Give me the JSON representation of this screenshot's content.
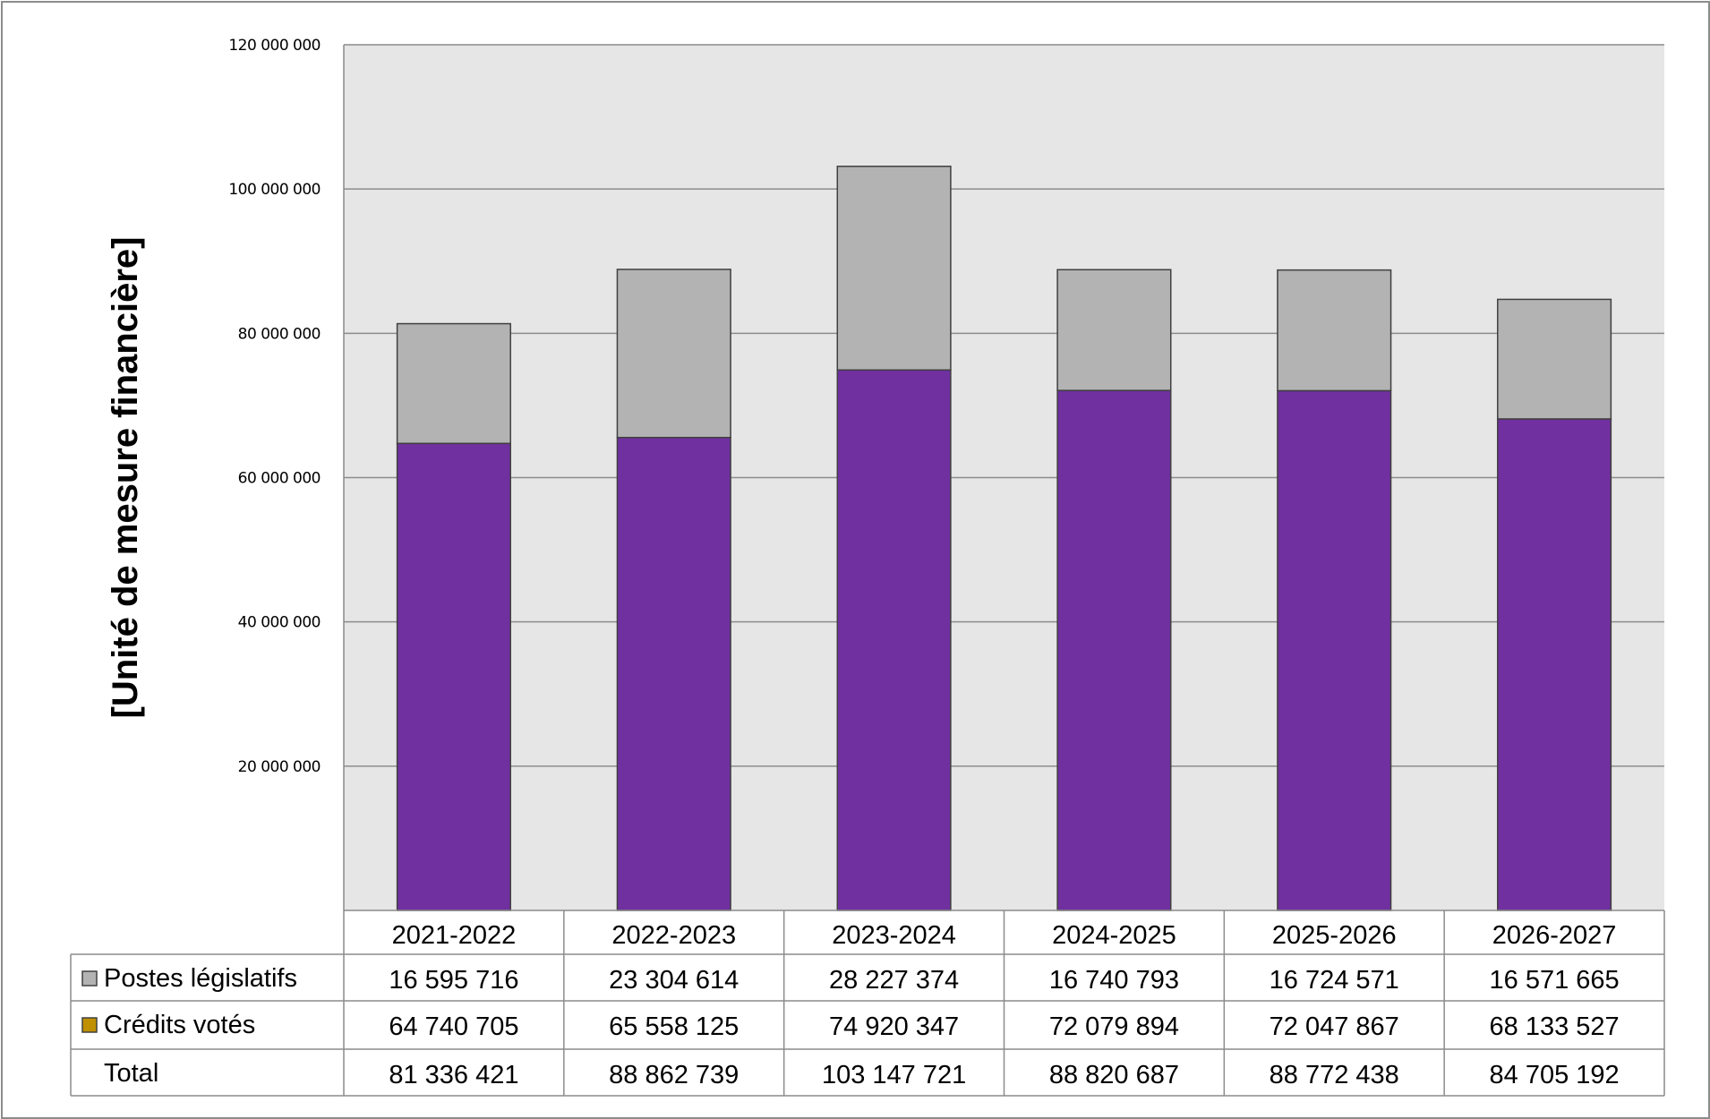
{
  "chart_data": {
    "type": "bar",
    "stacked": true,
    "ylabel": "[Unité de mesure financière]",
    "ylim": [
      0,
      120000000
    ],
    "yticks": [
      "20 000 000",
      "40 000 000",
      "60 000 000",
      "80 000 000",
      "100 000 000",
      "120 000 000"
    ],
    "ytick_values": [
      20000000,
      40000000,
      60000000,
      80000000,
      100000000,
      120000000
    ],
    "grid": true,
    "categories": [
      "2021-2022",
      "2022-2023",
      "2023-2024",
      "2024-2025",
      "2025-2026",
      "2026-2027"
    ],
    "series": [
      {
        "name": "Crédits votés",
        "color": "#7030a0",
        "legend_color": "#c09000",
        "values": [
          64740705,
          65558125,
          74920347,
          72079894,
          72047867,
          68133527
        ],
        "labels": [
          "64 740 705",
          "65 558 125",
          "74 920 347",
          "72 079 894",
          "72 047 867",
          "68 133 527"
        ]
      },
      {
        "name": "Postes législatifs",
        "color": "#b3b3b3",
        "legend_color": "#b3b3b3",
        "values": [
          16595716,
          23304614,
          28227374,
          16740793,
          16724571,
          16571665
        ],
        "labels": [
          "16 595 716",
          "23 304 614",
          "28 227 374",
          "16 740 793",
          "16 724 571",
          "16 571 665"
        ]
      }
    ],
    "total": {
      "name": "Total",
      "values": [
        81336421,
        88862739,
        103147721,
        88820687,
        88772438,
        84705192
      ],
      "labels": [
        "81 336 421",
        "88 862 739",
        "103 147 721",
        "88 820 687",
        "88 772 438",
        "84 705 192"
      ]
    },
    "table_row_order": [
      "Postes législatifs",
      "Crédits votés",
      "Total"
    ],
    "plot_background": "#e6e6e6"
  }
}
